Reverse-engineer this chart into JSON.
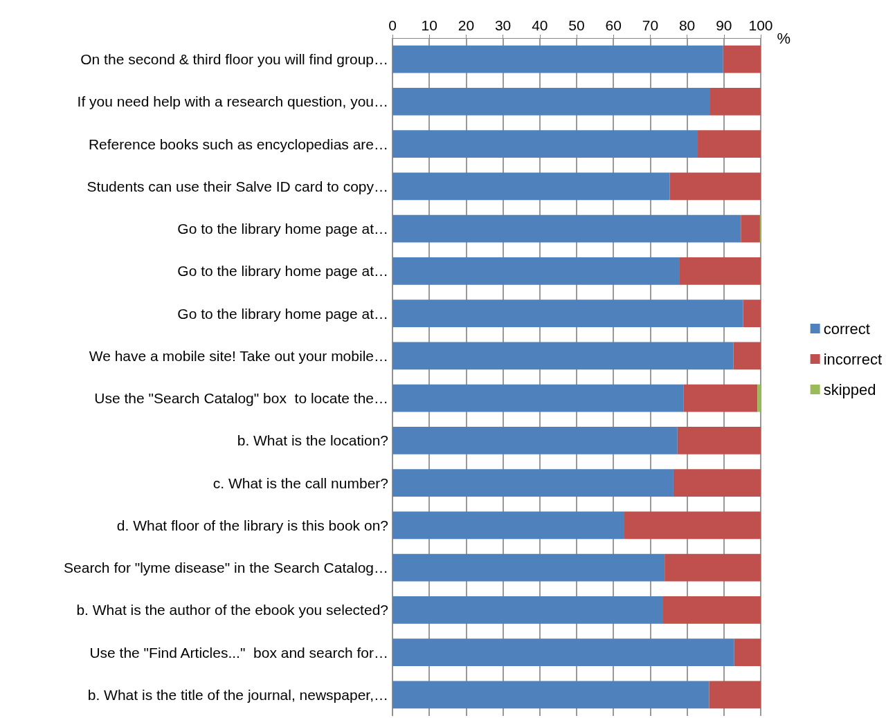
{
  "chart_data": {
    "type": "bar",
    "orientation": "horizontal",
    "stacked": true,
    "xlabel": "%",
    "categories": [
      "On the second & third floor you will find group…",
      "If you need help with a research question, you…",
      "Reference books such as encyclopedias are…",
      "Students can use their Salve ID card to copy…",
      "Go to the library home page at…",
      "Go to the library home page at…",
      "Go to the library home page at…",
      "We have a mobile site! Take out your mobile…",
      "Use the \"Search Catalog\" box  to locate the…",
      "b. What is the location?",
      "c. What is the call number?",
      "d. What floor of the library is this book on?",
      "Search for \"lyme disease\" in the Search Catalog…",
      "b. What is the author of the ebook you selected?",
      "Use the \"Find Articles...\"  box and search for…",
      "b. What is the title of the journal, newspaper,…"
    ],
    "series": [
      {
        "name": "correct",
        "color": "#4f81bd",
        "values": [
          89.8,
          86.1,
          82.9,
          75.3,
          94.6,
          78.0,
          95.2,
          92.6,
          79.1,
          77.4,
          76.3,
          62.8,
          73.9,
          73.5,
          92.8,
          86.0
        ]
      },
      {
        "name": "incorrect",
        "color": "#c0504d",
        "values": [
          10.2,
          13.9,
          17.1,
          24.7,
          5.2,
          22.0,
          4.8,
          7.4,
          20.0,
          22.6,
          23.7,
          37.2,
          26.1,
          26.5,
          7.2,
          14.0
        ]
      },
      {
        "name": "skipped",
        "color": "#9bbb59",
        "values": [
          0,
          0,
          0,
          0,
          0.2,
          0,
          0,
          0,
          0.9,
          0,
          0,
          0,
          0,
          0,
          0,
          0
        ]
      }
    ],
    "xlim": [
      0,
      100
    ],
    "xticks": [
      0,
      10,
      20,
      30,
      40,
      50,
      60,
      70,
      80,
      90,
      100
    ],
    "grid": "x",
    "legend": "right"
  }
}
